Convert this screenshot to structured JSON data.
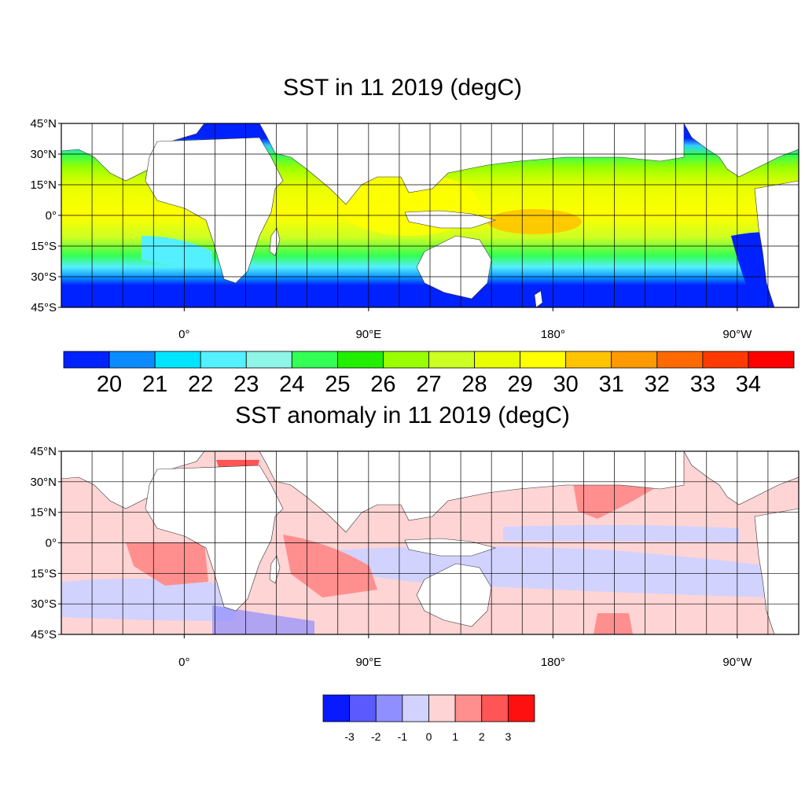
{
  "maps": [
    {
      "id": "sst",
      "title": "SST in 11 2019 (degC)",
      "lat_labels": [
        "45°N",
        "30°N",
        "15°N",
        "0°",
        "15°S",
        "30°S",
        "45°S"
      ],
      "lon_labels": [
        "0°",
        "90°E",
        "180°",
        "90°W"
      ],
      "colorbar": {
        "colors": [
          "#0022ff",
          "#0a8cff",
          "#00e5ff",
          "#55f0ff",
          "#8ff5e6",
          "#33ff55",
          "#22ee00",
          "#99ff00",
          "#ccff22",
          "#e8ff00",
          "#ffff00",
          "#ffc400",
          "#ff9b00",
          "#ff6a00",
          "#ff3a00",
          "#ff0000"
        ],
        "labels": [
          "20",
          "21",
          "22",
          "23",
          "24",
          "25",
          "26",
          "27",
          "28",
          "29",
          "30",
          "31",
          "32",
          "33",
          "34"
        ]
      }
    },
    {
      "id": "anom",
      "title": "SST anomaly in 11 2019 (degC)",
      "lat_labels": [
        "45°N",
        "30°N",
        "15°N",
        "0°",
        "15°S",
        "30°S",
        "45°S"
      ],
      "lon_labels": [
        "0°",
        "90°E",
        "180°",
        "90°W"
      ],
      "colorbar": {
        "colors": [
          "#0a1aff",
          "#5a5aff",
          "#8f8fff",
          "#d2d2ff",
          "#ffd4d4",
          "#ff8f8f",
          "#ff5555",
          "#ff1010"
        ],
        "labels": [
          "-3",
          "-2",
          "-1",
          "0",
          "1",
          "2",
          "3"
        ]
      }
    }
  ]
}
